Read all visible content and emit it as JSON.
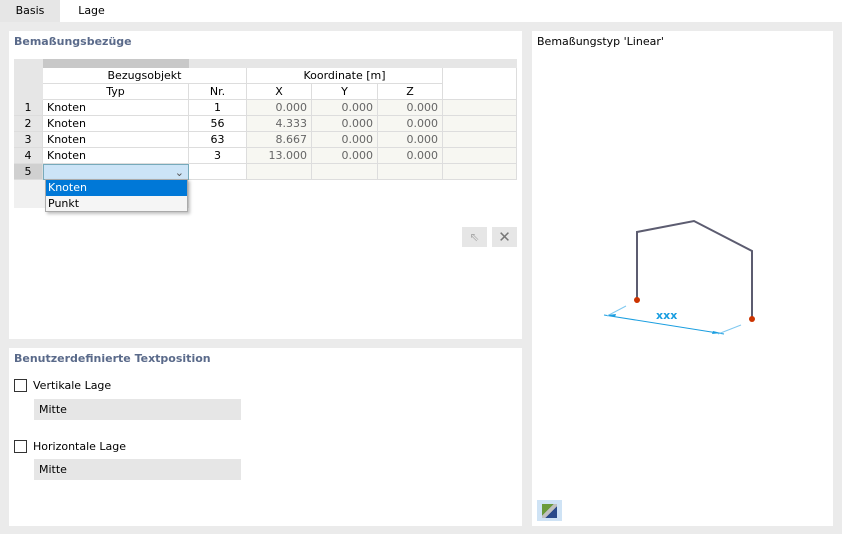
{
  "tabs": [
    {
      "label": "Basis",
      "active": false
    },
    {
      "label": "Lage",
      "active": true
    }
  ],
  "references": {
    "title": "Bemaßungsbezüge",
    "group_headers": {
      "object": "Bezugsobjekt",
      "coordinate": "Koordinate [m]"
    },
    "columns": {
      "typ": "Typ",
      "nr": "Nr.",
      "x": "X",
      "y": "Y",
      "z": "Z"
    },
    "rows": [
      {
        "n": "1",
        "typ": "Knoten",
        "nr": "1",
        "x": "0.000",
        "y": "0.000",
        "z": "0.000"
      },
      {
        "n": "2",
        "typ": "Knoten",
        "nr": "56",
        "x": "4.333",
        "y": "0.000",
        "z": "0.000"
      },
      {
        "n": "3",
        "typ": "Knoten",
        "nr": "63",
        "x": "8.667",
        "y": "0.000",
        "z": "0.000"
      },
      {
        "n": "4",
        "typ": "Knoten",
        "nr": "3",
        "x": "13.000",
        "y": "0.000",
        "z": "0.000"
      },
      {
        "n": "5",
        "typ": "",
        "nr": "",
        "x": "",
        "y": "",
        "z": ""
      }
    ],
    "dropdown_options": [
      {
        "label": "Knoten",
        "selected": true
      },
      {
        "label": "Punkt",
        "selected": false
      }
    ]
  },
  "text_position": {
    "title": "Benutzerdefinierte Textposition",
    "vertical": {
      "label": "Vertikale Lage",
      "checked": false,
      "value": "Mitte"
    },
    "horizontal": {
      "label": "Horizontale Lage",
      "checked": false,
      "value": "Mitte"
    }
  },
  "preview": {
    "title": "Bemaßungstyp 'Linear'",
    "dimension_label": "xxx",
    "colors": {
      "frame": "#5c5c70",
      "node": "#cc3300",
      "dimension": "#1a9ee0"
    }
  }
}
